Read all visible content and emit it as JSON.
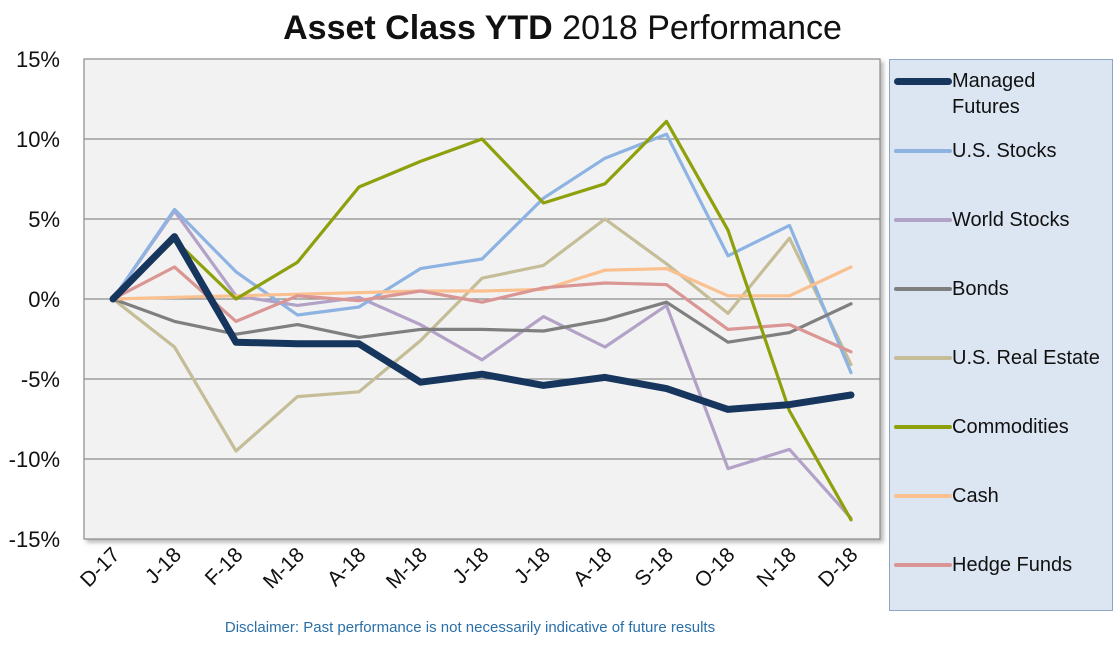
{
  "title": {
    "bold": "Asset Class YTD",
    "regular": " 2018 Performance"
  },
  "disclaimer": "Disclaimer: Past performance is not necessarily indicative of future results",
  "chart_data": {
    "type": "line",
    "title": "Asset Class YTD 2018 Performance",
    "xlabel": "",
    "ylabel": "",
    "categories": [
      "D-17",
      "J-18",
      "F-18",
      "M-18",
      "A-18",
      "M-18",
      "J-18",
      "J-18",
      "A-18",
      "S-18",
      "O-18",
      "N-18",
      "D-18"
    ],
    "ylim": [
      -15,
      15
    ],
    "yticks": [
      15,
      10,
      5,
      0,
      -5,
      -10,
      -15
    ],
    "ytick_labels": [
      "15%",
      "10%",
      "5%",
      "0%",
      "-5%",
      "-10%",
      "-15%"
    ],
    "grid": true,
    "legend_position": "right",
    "background_color": "#f2f2f2",
    "series": [
      {
        "name": "U.S. Real Estate",
        "color": "#c4bd97",
        "thick": false,
        "values": [
          0.0,
          -3.0,
          -9.5,
          -6.1,
          -5.8,
          -2.6,
          1.3,
          2.1,
          5.0,
          2.2,
          -0.9,
          3.8,
          -4.1
        ]
      },
      {
        "name": "World Stocks",
        "color": "#b3a2c7",
        "thick": false,
        "values": [
          0.0,
          5.5,
          0.2,
          -0.4,
          0.1,
          -1.6,
          -3.8,
          -1.1,
          -3.0,
          -0.4,
          -10.6,
          -9.4,
          -13.7
        ]
      },
      {
        "name": "U.S. Stocks",
        "color": "#8db3e2",
        "thick": false,
        "values": [
          0.0,
          5.6,
          1.7,
          -1.0,
          -0.5,
          1.9,
          2.5,
          6.3,
          8.8,
          10.3,
          2.7,
          4.6,
          -4.6
        ]
      },
      {
        "name": "Bonds",
        "color": "#7f7f7f",
        "thick": false,
        "values": [
          0.0,
          -1.4,
          -2.2,
          -1.6,
          -2.4,
          -1.9,
          -1.9,
          -2.0,
          -1.3,
          -0.2,
          -2.7,
          -2.1,
          -0.3
        ]
      },
      {
        "name": "Cash",
        "color": "#fac090",
        "thick": false,
        "values": [
          0.0,
          0.1,
          0.2,
          0.3,
          0.4,
          0.5,
          0.5,
          0.6,
          1.8,
          1.9,
          0.2,
          0.2,
          2.0
        ]
      },
      {
        "name": "Hedge Funds",
        "color": "#d99694",
        "thick": false,
        "values": [
          0.0,
          2.0,
          -1.4,
          0.2,
          -0.1,
          0.5,
          -0.2,
          0.7,
          1.0,
          0.9,
          -1.9,
          -1.6,
          -3.3
        ]
      },
      {
        "name": "Commodities",
        "color": "#8ea00b",
        "thick": false,
        "values": [
          0.0,
          3.7,
          0.0,
          2.3,
          7.0,
          8.6,
          10.0,
          6.0,
          7.2,
          11.1,
          4.3,
          -7.0,
          -13.8
        ]
      },
      {
        "name": "Managed Futures",
        "color": "#17365d",
        "thick": true,
        "values": [
          0.0,
          3.9,
          -2.7,
          -2.8,
          -2.8,
          -5.2,
          -4.7,
          -5.4,
          -4.9,
          -5.6,
          -6.9,
          -6.6,
          -6.0
        ]
      }
    ],
    "legend_order": [
      "Managed Futures",
      "U.S. Stocks",
      "World Stocks",
      "Bonds",
      "U.S. Real Estate",
      "Commodities",
      "Cash",
      "Hedge Funds"
    ],
    "legend_labels": {
      "Managed Futures": "Managed\nFutures",
      "U.S. Stocks": "U.S. Stocks",
      "World Stocks": "World Stocks",
      "Bonds": "Bonds",
      "U.S. Real Estate": "U.S. Real Estate",
      "Commodities": "Commodities",
      "Cash": "Cash",
      "Hedge Funds": "Hedge Funds"
    }
  }
}
